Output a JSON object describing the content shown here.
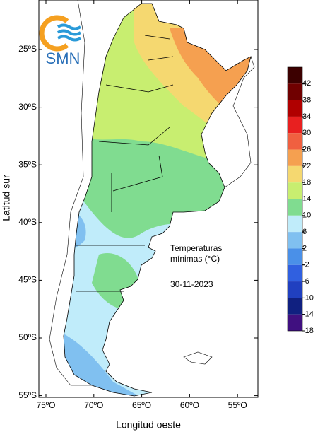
{
  "logo": "SMN",
  "ylabel": "Latitud sur",
  "xlabel": "Longitud oeste",
  "yticks": [
    "25ºS",
    "30ºS",
    "35ºS",
    "40ºS",
    "45ºS",
    "50ºS",
    "55ºS"
  ],
  "xticks": [
    "75ºO",
    "70ºO",
    "65ºO",
    "60ºO",
    "55ºO"
  ],
  "annotation": [
    "Temperaturas",
    "mínimas (°C)"
  ],
  "date": "30-11-2023",
  "colorbar": {
    "labels": [
      "42",
      "38",
      "34",
      "30",
      "26",
      "22",
      "18",
      "14",
      "10",
      "6",
      "2",
      "-2",
      "-6",
      "-10",
      "-14",
      "-18"
    ],
    "colors": [
      "#3c0000",
      "#700000",
      "#b00000",
      "#e82020",
      "#f06040",
      "#f5a050",
      "#f5d870",
      "#c8ee70",
      "#80dc90",
      "#c0ecfa",
      "#80c0f0",
      "#4a90e8",
      "#3060e0",
      "#2040c0",
      "#102080",
      "#401080"
    ]
  }
}
